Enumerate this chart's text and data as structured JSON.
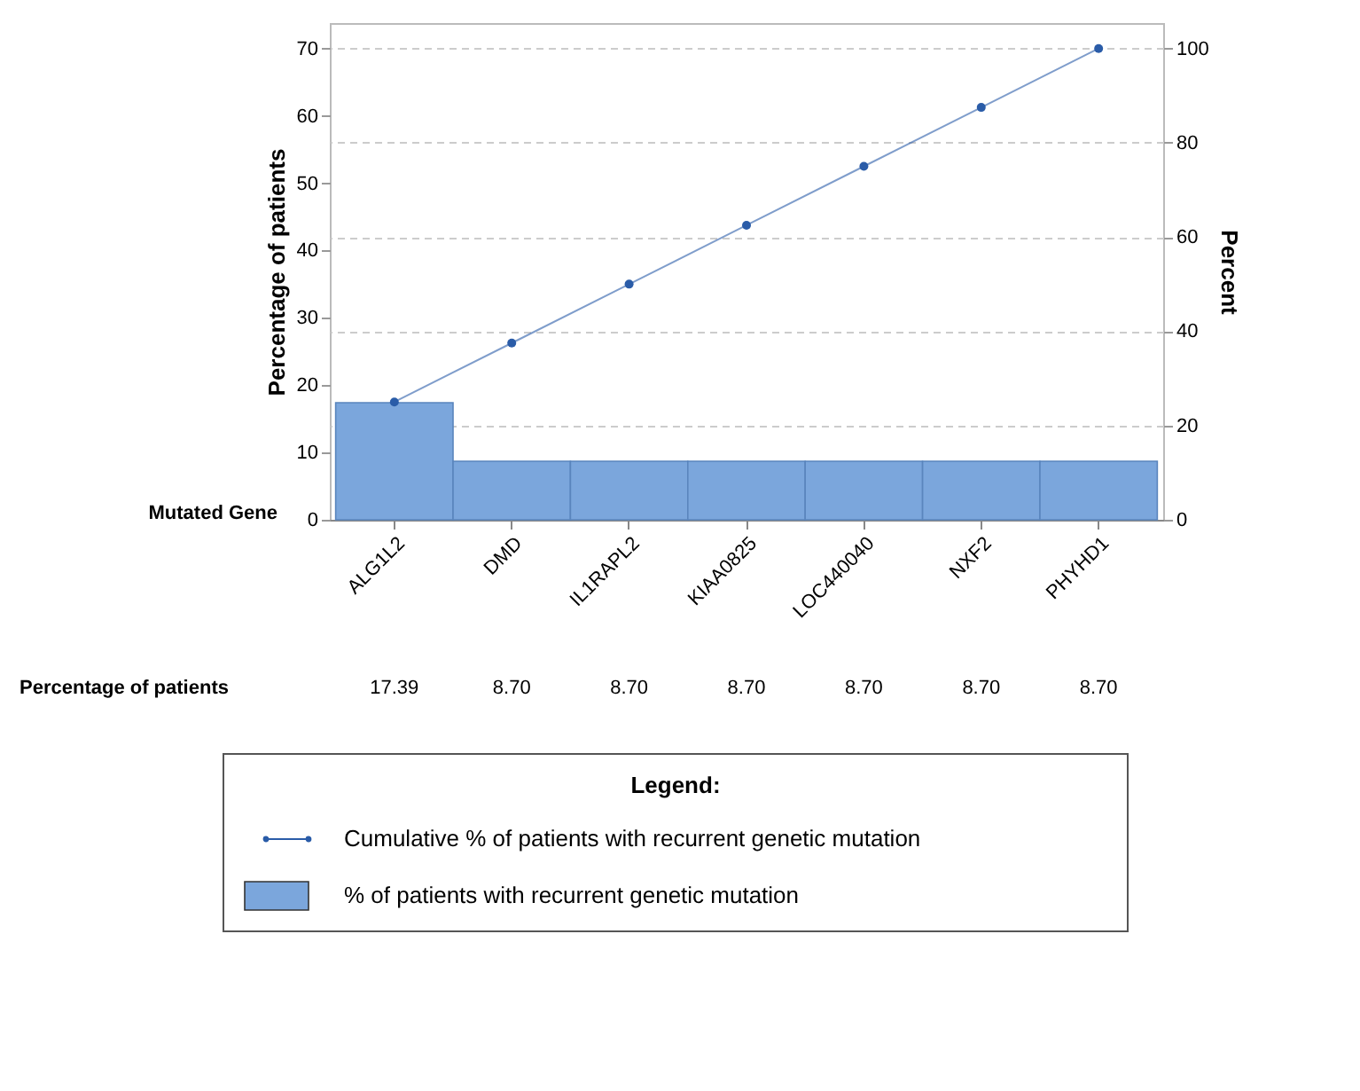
{
  "chart_data": {
    "type": "bar",
    "categories": [
      "ALG1L2",
      "DMD",
      "IL1RAPL2",
      "KIAA0825",
      "LOC440040",
      "NXF2",
      "PHYHD1"
    ],
    "xlabel": "Mutated Gene",
    "ylabel": "Percentage of patients",
    "y2label": "Percent",
    "legend_title": "Legend:",
    "legend": "bottom",
    "grid": "y2",
    "marker": "circle",
    "ylim": [
      0,
      73.8
    ],
    "yticks": [
      0,
      10,
      20,
      30,
      40,
      50,
      60,
      70
    ],
    "y2lim": [
      0,
      105.4
    ],
    "y2ticks": [
      0,
      20,
      40,
      60,
      80,
      100
    ],
    "annotations": [
      "Percentage of patients"
    ],
    "series": [
      {
        "name": "Cumulative % of patients with recurrent genetic mutation",
        "type": "line",
        "axis": "y2",
        "color": "#2a5ca8",
        "values": [
          25,
          37.5,
          50,
          62.5,
          75,
          87.5,
          100
        ]
      },
      {
        "name": "% of patients with recurrent genetic mutation",
        "color": "#7ba6dc",
        "values": [
          17.39,
          8.7,
          8.7,
          8.7,
          8.7,
          8.7,
          8.7
        ],
        "value_labels": [
          "17.39",
          "8.70",
          "8.70",
          "8.70",
          "8.70",
          "8.70",
          "8.70"
        ]
      }
    ]
  }
}
